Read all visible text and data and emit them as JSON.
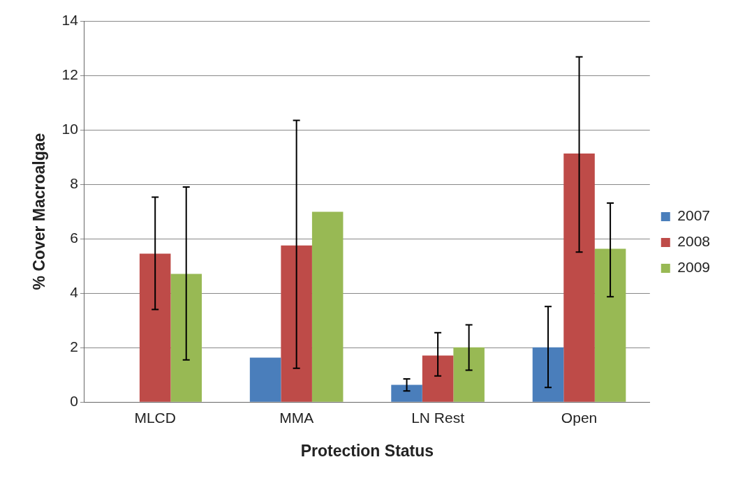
{
  "chart_data": {
    "type": "bar",
    "xlabel": "Protection Status",
    "ylabel": "% Cover Macroalgae",
    "categories": [
      "MLCD",
      "MMA",
      "LN Rest",
      "Open"
    ],
    "series": [
      {
        "name": "2007",
        "color": "#4a7ebb",
        "values": [
          null,
          1.63,
          0.63,
          2.01
        ],
        "errors": [
          null,
          null,
          [
            0.41,
            0.85
          ],
          [
            0.54,
            3.51
          ]
        ]
      },
      {
        "name": "2008",
        "color": "#be4b48",
        "values": [
          5.45,
          5.75,
          1.71,
          9.13
        ],
        "errors": [
          [
            3.4,
            7.53
          ],
          [
            1.24,
            10.35
          ],
          [
            0.96,
            2.55
          ],
          [
            5.51,
            12.68
          ]
        ]
      },
      {
        "name": "2009",
        "color": "#98b954",
        "values": [
          4.71,
          6.99,
          2.01,
          5.63
        ],
        "errors": [
          [
            1.55,
            7.9
          ],
          null,
          [
            1.17,
            2.84
          ],
          [
            3.87,
            7.31
          ]
        ]
      }
    ],
    "ylim": [
      0,
      14
    ],
    "yticks": [
      0,
      2,
      4,
      6,
      8,
      10,
      12,
      14
    ],
    "grid": "y",
    "legend": "right"
  }
}
